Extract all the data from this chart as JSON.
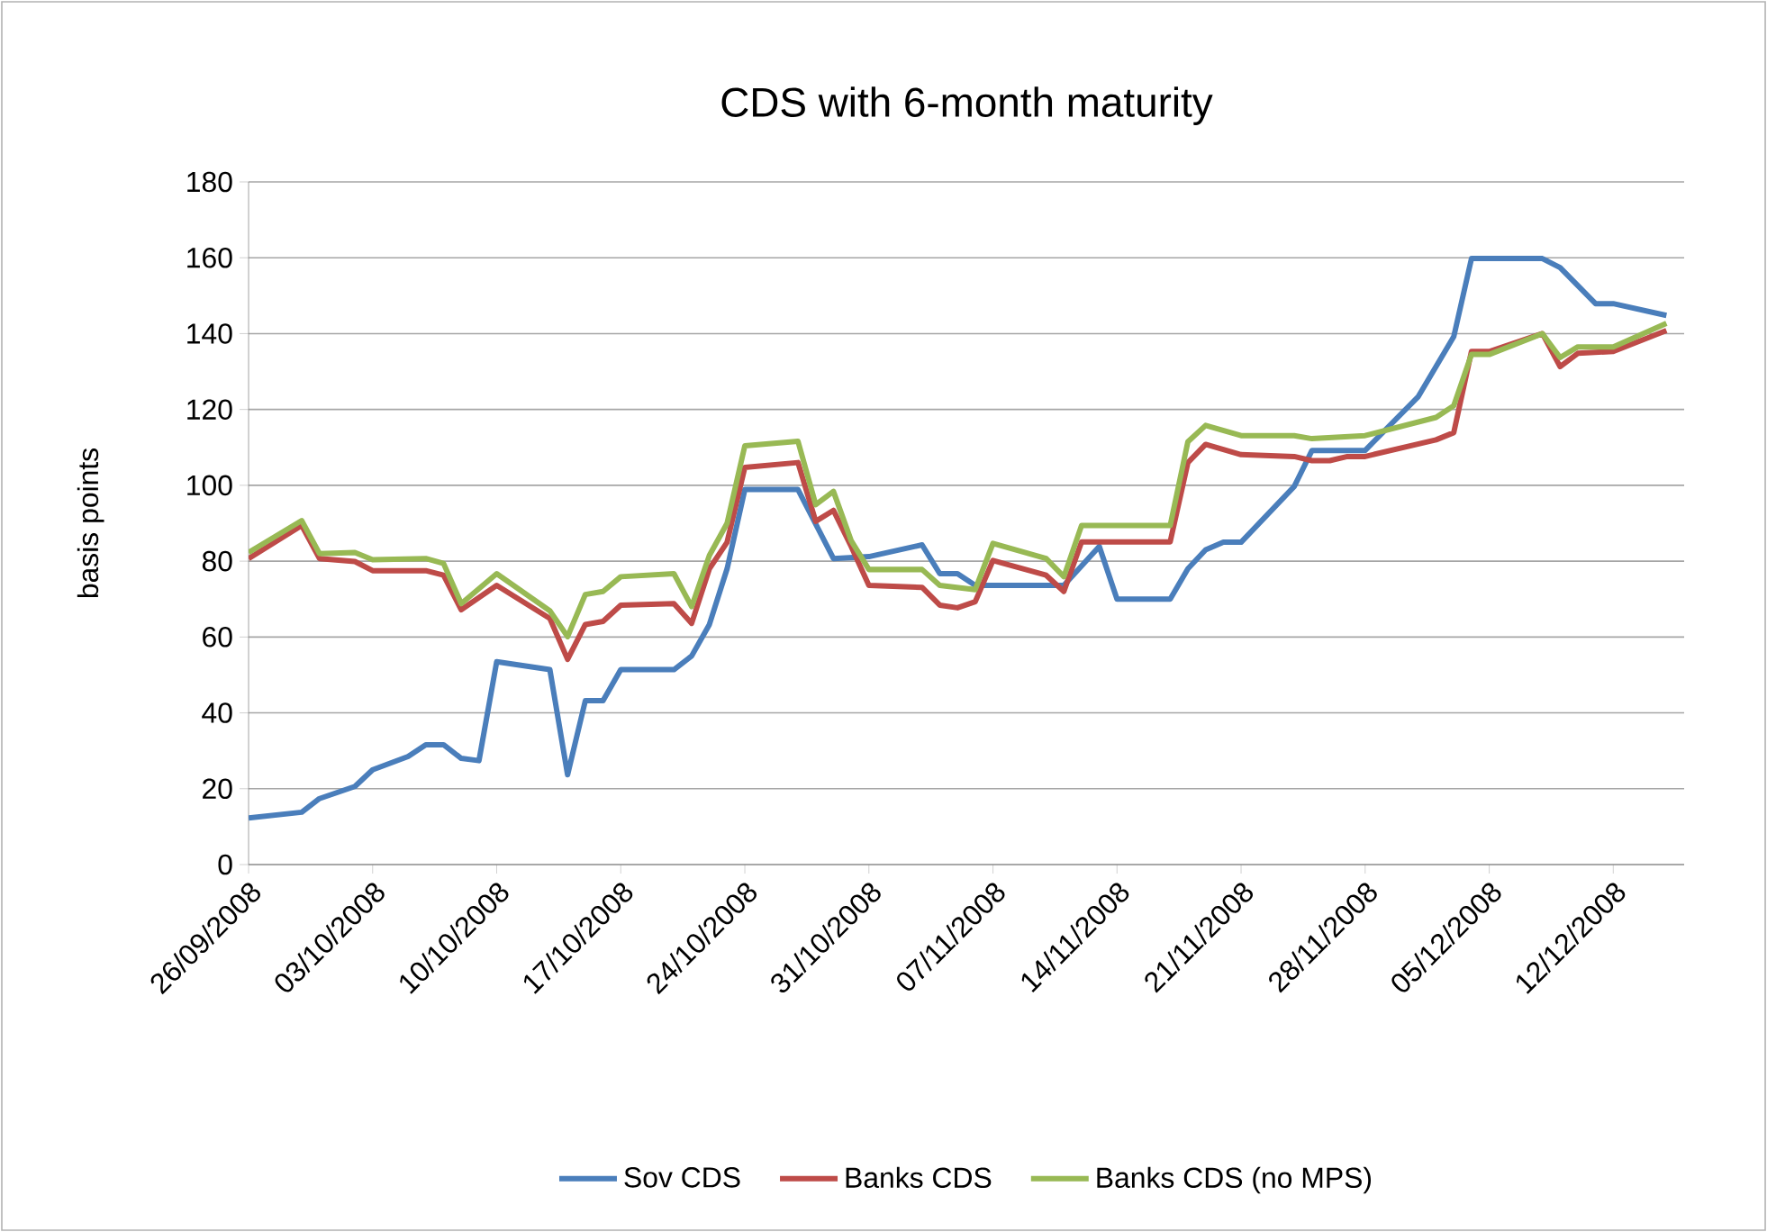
{
  "chart_data": {
    "type": "line",
    "title": "CDS with 6-month maturity",
    "ylabel": "basis points",
    "xlim": [
      "2008-09-26",
      "2008-12-16"
    ],
    "xticks": [
      {
        "value": "2008-09-26",
        "label": "26/09/2008"
      },
      {
        "value": "2008-10-03",
        "label": "03/10/2008"
      },
      {
        "value": "2008-10-10",
        "label": "10/10/2008"
      },
      {
        "value": "2008-10-17",
        "label": "17/10/2008"
      },
      {
        "value": "2008-10-24",
        "label": "24/10/2008"
      },
      {
        "value": "2008-10-31",
        "label": "31/10/2008"
      },
      {
        "value": "2008-11-07",
        "label": "07/11/2008"
      },
      {
        "value": "2008-11-14",
        "label": "14/11/2008"
      },
      {
        "value": "2008-11-21",
        "label": "21/11/2008"
      },
      {
        "value": "2008-11-28",
        "label": "28/11/2008"
      },
      {
        "value": "2008-12-05",
        "label": "05/12/2008"
      },
      {
        "value": "2008-12-12",
        "label": "12/12/2008"
      }
    ],
    "ylim": [
      0,
      180
    ],
    "yticks": [
      0,
      20,
      40,
      60,
      80,
      100,
      120,
      140,
      160,
      180
    ],
    "grid": "y",
    "legend": "bottom",
    "series": [
      {
        "name": "Sov CDS",
        "color": "#4a7ebb",
        "x": [
          "2008-09-26",
          "2008-09-29",
          "2008-09-30",
          "2008-10-02",
          "2008-10-03",
          "2008-10-05",
          "2008-10-06",
          "2008-10-07",
          "2008-10-08",
          "2008-10-09",
          "2008-10-10",
          "2008-10-13",
          "2008-10-14",
          "2008-10-15",
          "2008-10-16",
          "2008-10-17",
          "2008-10-20",
          "2008-10-21",
          "2008-10-22",
          "2008-10-23",
          "2008-10-24",
          "2008-10-27",
          "2008-10-29",
          "2008-10-31",
          "2008-11-03",
          "2008-11-04",
          "2008-11-05",
          "2008-11-06",
          "2008-11-11",
          "2008-11-13",
          "2008-11-14",
          "2008-11-17",
          "2008-11-18",
          "2008-11-19",
          "2008-11-20",
          "2008-11-21",
          "2008-11-24",
          "2008-11-25",
          "2008-11-28",
          "2008-12-01",
          "2008-12-03",
          "2008-12-04",
          "2008-12-08",
          "2008-12-09",
          "2008-12-11",
          "2008-12-12",
          "2008-12-15"
        ],
        "values": [
          12.3,
          13.8,
          17.4,
          20.6,
          25,
          28.5,
          31.6,
          31.6,
          28,
          27.4,
          53.5,
          51.4,
          23.7,
          43.2,
          43.2,
          51.4,
          51.4,
          55,
          63.3,
          78,
          98.9,
          98.9,
          80.7,
          81.2,
          84.3,
          76.7,
          76.7,
          73.6,
          73.6,
          83.9,
          70,
          70,
          78,
          83,
          85,
          85,
          99.7,
          109.2,
          109.2,
          123.4,
          139.2,
          159.8,
          159.8,
          157.4,
          147.9,
          147.9,
          144.8
        ]
      },
      {
        "name": "Banks CDS",
        "color": "#be4b48",
        "x": [
          "2008-09-26",
          "2008-09-29",
          "2008-09-30",
          "2008-10-02",
          "2008-10-03",
          "2008-10-06",
          "2008-10-07",
          "2008-10-08",
          "2008-10-10",
          "2008-10-13",
          "2008-10-14",
          "2008-10-15",
          "2008-10-16",
          "2008-10-17",
          "2008-10-20",
          "2008-10-21",
          "2008-10-22",
          "2008-10-23",
          "2008-10-24",
          "2008-10-27",
          "2008-10-28",
          "2008-10-29",
          "2008-10-30",
          "2008-10-31",
          "2008-11-03",
          "2008-11-04",
          "2008-11-05",
          "2008-11-06",
          "2008-11-07",
          "2008-11-10",
          "2008-11-11",
          "2008-11-12",
          "2008-11-17",
          "2008-11-18",
          "2008-11-19",
          "2008-11-21",
          "2008-11-24",
          "2008-11-25",
          "2008-11-26",
          "2008-11-27",
          "2008-11-28",
          "2008-12-02",
          "2008-12-03",
          "2008-12-04",
          "2008-12-05",
          "2008-12-08",
          "2008-12-09",
          "2008-12-10",
          "2008-12-12",
          "2008-12-15"
        ],
        "values": [
          80.7,
          89.4,
          80.7,
          79.9,
          77.5,
          77.5,
          76.3,
          67.2,
          73.6,
          64.9,
          54.1,
          63.3,
          64.1,
          68.4,
          68.8,
          63.6,
          78,
          85,
          104.7,
          106,
          90.5,
          93.4,
          83.9,
          73.6,
          73.1,
          68.4,
          67.7,
          69.3,
          80.2,
          76.3,
          72,
          85.1,
          85.1,
          106,
          110.8,
          108.1,
          107.6,
          106.5,
          106.5,
          107.6,
          107.6,
          112,
          113.9,
          135.3,
          135.3,
          140,
          131.3,
          134.8,
          135.3,
          140.8
        ]
      },
      {
        "name": "Banks CDS (no MPS)",
        "color": "#98b954",
        "x": [
          "2008-09-26",
          "2008-09-29",
          "2008-09-30",
          "2008-10-02",
          "2008-10-03",
          "2008-10-06",
          "2008-10-07",
          "2008-10-08",
          "2008-10-10",
          "2008-10-13",
          "2008-10-14",
          "2008-10-15",
          "2008-10-16",
          "2008-10-17",
          "2008-10-20",
          "2008-10-21",
          "2008-10-22",
          "2008-10-23",
          "2008-10-24",
          "2008-10-27",
          "2008-10-28",
          "2008-10-29",
          "2008-10-30",
          "2008-10-31",
          "2008-11-03",
          "2008-11-04",
          "2008-11-06",
          "2008-11-07",
          "2008-11-10",
          "2008-11-11",
          "2008-11-12",
          "2008-11-17",
          "2008-11-18",
          "2008-11-19",
          "2008-11-21",
          "2008-11-24",
          "2008-11-25",
          "2008-11-28",
          "2008-12-02",
          "2008-12-03",
          "2008-12-04",
          "2008-12-05",
          "2008-12-08",
          "2008-12-09",
          "2008-12-10",
          "2008-12-12",
          "2008-12-15"
        ],
        "values": [
          82.3,
          90.7,
          82,
          82.3,
          80.4,
          80.7,
          79.4,
          68.8,
          76.7,
          66.9,
          60.1,
          71.2,
          72,
          75.9,
          76.7,
          68,
          81.5,
          90,
          110.4,
          111.6,
          94.9,
          98.4,
          85.4,
          77.8,
          77.8,
          73.6,
          72.5,
          84.7,
          80.7,
          75.9,
          89.4,
          89.4,
          111.5,
          115.8,
          113.1,
          113.1,
          112.3,
          113.1,
          117.9,
          121,
          134.5,
          134.5,
          140,
          133.7,
          136.5,
          136.5,
          142.7
        ]
      }
    ]
  }
}
